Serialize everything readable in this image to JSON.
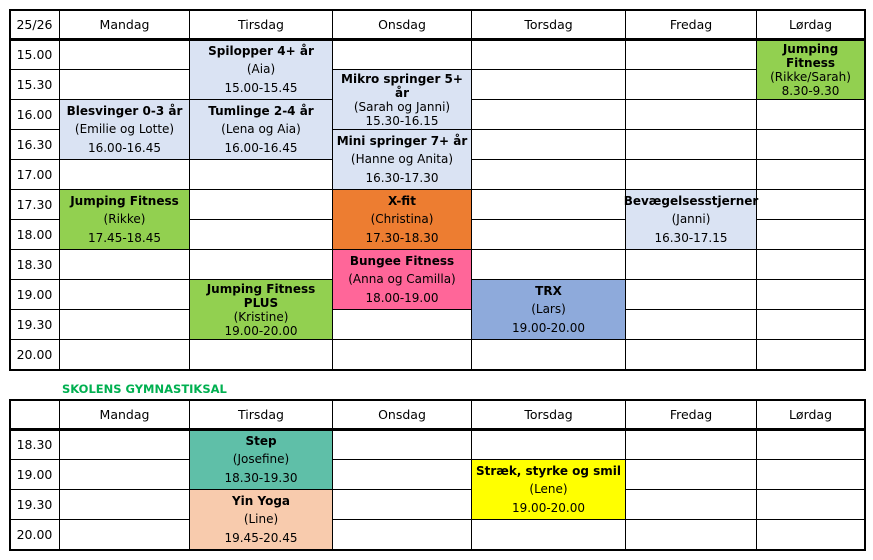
{
  "tables": [
    {
      "corner": "25/26",
      "days": [
        "Mandag",
        "Tirsdag",
        "Onsdag",
        "Torsdag",
        "Fredag",
        "Lørdag"
      ],
      "times": [
        "15.00",
        "15.30",
        "16.00",
        "16.30",
        "17.00",
        "17.30",
        "18.00",
        "18.30",
        "19.00",
        "19.30",
        "20.00"
      ],
      "events": [
        {
          "day": "Tirsdag",
          "slots": [
            "15.00",
            "15.30"
          ],
          "title": "Spilopper 4+ år",
          "instructor": "(Aia)",
          "time": "15.00-15.45",
          "color": "#dae3f3"
        },
        {
          "day": "Onsdag",
          "slots": [
            "15.30",
            "16.00"
          ],
          "title": "Mikro springer 5+ år",
          "instructor": "(Sarah og Janni)",
          "time": "15.30-16.15",
          "color": "#dae3f3"
        },
        {
          "day": "Mandag",
          "slots": [
            "16.00",
            "16.30"
          ],
          "title": "Blesvinger 0-3 år",
          "instructor": "(Emilie og Lotte)",
          "time": "16.00-16.45",
          "color": "#dae3f3"
        },
        {
          "day": "Tirsdag",
          "slots": [
            "16.00",
            "16.30"
          ],
          "title": "Tumlinge 2-4 år",
          "instructor": "(Lena og Aia)",
          "time": "16.00-16.45",
          "color": "#dae3f3"
        },
        {
          "day": "Onsdag",
          "slots": [
            "16.30",
            "17.00"
          ],
          "title": "Mini springer 7+ år",
          "instructor": "(Hanne og Anita)",
          "time": "16.30-17.30",
          "color": "#dae3f3"
        },
        {
          "day": "Lørdag",
          "slots": [
            "15.00",
            "15.30"
          ],
          "title": "Jumping Fitness",
          "instructor": "(Rikke/Sarah)",
          "time": "8.30-9.30",
          "color": "#92d050"
        },
        {
          "day": "Mandag",
          "slots": [
            "17.30",
            "18.00"
          ],
          "title": "Jumping Fitness",
          "instructor": "(Rikke)",
          "time": "17.45-18.45",
          "color": "#92d050"
        },
        {
          "day": "Onsdag",
          "slots": [
            "17.30",
            "18.00"
          ],
          "title": "X-fit",
          "instructor": "(Christina)",
          "time": "17.30-18.30",
          "color": "#ed7d31"
        },
        {
          "day": "Fredag",
          "slots": [
            "17.30",
            "18.00"
          ],
          "title": "Bevægelsesstjerner",
          "instructor": "(Janni)",
          "time": "16.30-17.15",
          "color": "#dae3f3"
        },
        {
          "day": "Onsdag",
          "slots": [
            "18.30",
            "19.00"
          ],
          "title": "Bungee Fitness",
          "instructor": "(Anna og Camilla)",
          "time": "18.00-19.00",
          "color": "#ff6699"
        },
        {
          "day": "Tirsdag",
          "slots": [
            "19.00",
            "19.30"
          ],
          "title": "Jumping Fitness PLUS",
          "instructor": "(Kristine)",
          "time": "19.00-20.00",
          "color": "#92d050"
        },
        {
          "day": "Torsdag",
          "slots": [
            "19.00",
            "19.30"
          ],
          "title": "TRX",
          "instructor": "(Lars)",
          "time": "19.00-20.00",
          "color": "#8eaadb"
        }
      ]
    },
    {
      "section_label": "SKOLENS GYMNASTIKSAL",
      "section_label_color": "#00b050",
      "corner": "",
      "days": [
        "Mandag",
        "Tirsdag",
        "Onsdag",
        "Torsdag",
        "Fredag",
        "Lørdag"
      ],
      "times": [
        "18.30",
        "19.00",
        "19.30",
        "20.00"
      ],
      "events": [
        {
          "day": "Tirsdag",
          "slots": [
            "18.30",
            "19.00"
          ],
          "title": "Step",
          "instructor": "(Josefine)",
          "time": "18.30-19.30",
          "color": "#5fbfa8"
        },
        {
          "day": "Tirsdag",
          "slots": [
            "19.30",
            "20.00"
          ],
          "title": "Yin Yoga",
          "instructor": "(Line)",
          "time": "19.45-20.45",
          "color": "#f8cbad"
        },
        {
          "day": "Torsdag",
          "slots": [
            "19.00",
            "19.30"
          ],
          "title": "Stræk, styrke og smil",
          "instructor": "(Lene)",
          "time": "19.00-20.00",
          "color": "#ffff00"
        }
      ]
    }
  ]
}
